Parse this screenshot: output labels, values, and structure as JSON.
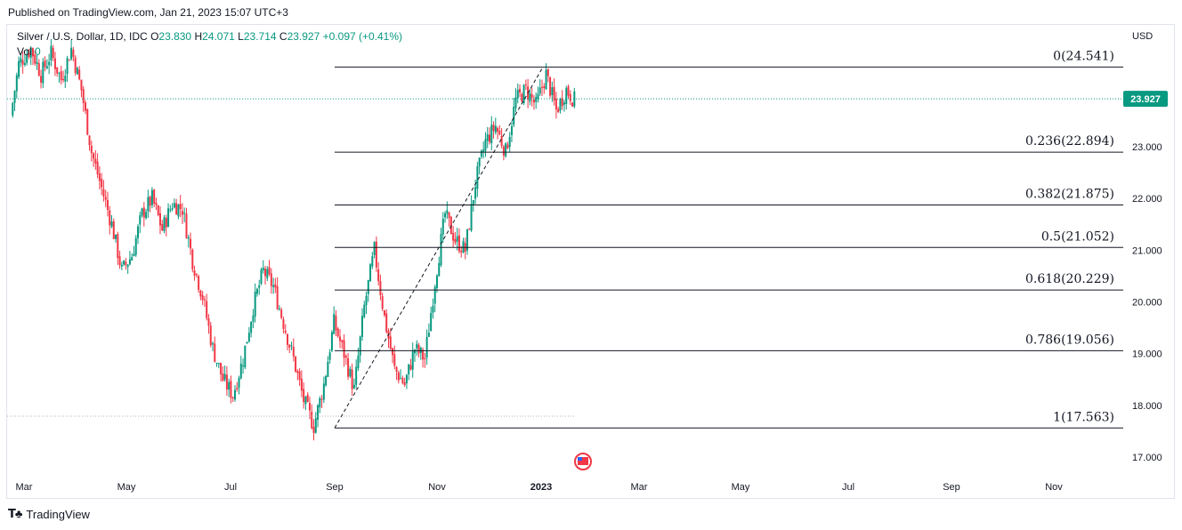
{
  "published": "Published on TradingView.com, Jan 21, 2023 15:07 UTC+3",
  "footer_brand": "TradingView",
  "legend": {
    "symbol": "Silver / U.S. Dollar",
    "interval": "1D",
    "exchange": "IDC",
    "o_label": "O",
    "o_value": "23.830",
    "h_label": "H",
    "h_value": "24.071",
    "l_label": "L",
    "l_value": "23.714",
    "c_label": "C",
    "c_value": "23.927",
    "change": "+0.097 (+0.41%)",
    "vol_label": "Vol",
    "vol_value": "0"
  },
  "colors": {
    "up": "#089981",
    "down": "#f23645",
    "fib_line": "#131722",
    "price_tag": "#089981"
  },
  "chart_data": {
    "type": "candlestick",
    "currency_label": "USD",
    "last_price": "23.927",
    "y_ticks": [
      "23.000",
      "22.000",
      "21.000",
      "20.000",
      "19.000",
      "18.000",
      "17.000"
    ],
    "x_ticks": [
      "Mar",
      "May",
      "Jul",
      "Sep",
      "Nov",
      "2023",
      "Mar",
      "May",
      "Jul",
      "Sep",
      "Nov"
    ],
    "ylim": [
      16.6,
      25.1
    ],
    "fib_levels": [
      {
        "label": "0(24.541)",
        "value": 24.541
      },
      {
        "label": "0.236(22.894)",
        "value": 22.894
      },
      {
        "label": "0.382(21.875)",
        "value": 21.875
      },
      {
        "label": "0.5(21.052)",
        "value": 21.052
      },
      {
        "label": "0.618(20.229)",
        "value": 20.229
      },
      {
        "label": "0.786(19.056)",
        "value": 19.056
      },
      {
        "label": "1(17.563)",
        "value": 17.563
      }
    ],
    "close_path": [
      [
        0,
        23.6
      ],
      [
        4,
        24.6
      ],
      [
        10,
        24.9
      ],
      [
        15,
        24.4
      ],
      [
        20,
        24.8
      ],
      [
        25,
        24.3
      ],
      [
        30,
        24.9
      ],
      [
        35,
        24.1
      ],
      [
        40,
        22.9
      ],
      [
        45,
        22.2
      ],
      [
        50,
        21.5
      ],
      [
        55,
        20.6
      ],
      [
        60,
        20.9
      ],
      [
        65,
        21.7
      ],
      [
        70,
        22.0
      ],
      [
        75,
        21.4
      ],
      [
        80,
        21.9
      ],
      [
        85,
        21.8
      ],
      [
        90,
        20.8
      ],
      [
        95,
        20.1
      ],
      [
        100,
        19.1
      ],
      [
        105,
        18.5
      ],
      [
        110,
        18.2
      ],
      [
        115,
        18.9
      ],
      [
        120,
        19.9
      ],
      [
        125,
        20.6
      ],
      [
        130,
        20.3
      ],
      [
        135,
        19.6
      ],
      [
        140,
        18.9
      ],
      [
        145,
        18.1
      ],
      [
        150,
        17.6
      ],
      [
        155,
        18.4
      ],
      [
        160,
        19.6
      ],
      [
        165,
        19.0
      ],
      [
        170,
        18.3
      ],
      [
        175,
        19.9
      ],
      [
        180,
        21.0
      ],
      [
        185,
        19.7
      ],
      [
        190,
        18.7
      ],
      [
        195,
        18.4
      ],
      [
        200,
        19.1
      ],
      [
        205,
        18.9
      ],
      [
        210,
        20.4
      ],
      [
        215,
        21.7
      ],
      [
        220,
        21.2
      ],
      [
        225,
        21.0
      ],
      [
        230,
        22.3
      ],
      [
        235,
        23.1
      ],
      [
        240,
        23.4
      ],
      [
        245,
        22.9
      ],
      [
        250,
        23.9
      ],
      [
        255,
        24.1
      ],
      [
        260,
        23.8
      ],
      [
        265,
        24.4
      ],
      [
        270,
        23.7
      ],
      [
        275,
        24.1
      ],
      [
        279,
        23.9
      ]
    ],
    "fib_anchor_low": {
      "bar": 150,
      "value": 17.563
    },
    "fib_anchor_high": {
      "bar": 248,
      "value": 24.541
    }
  }
}
